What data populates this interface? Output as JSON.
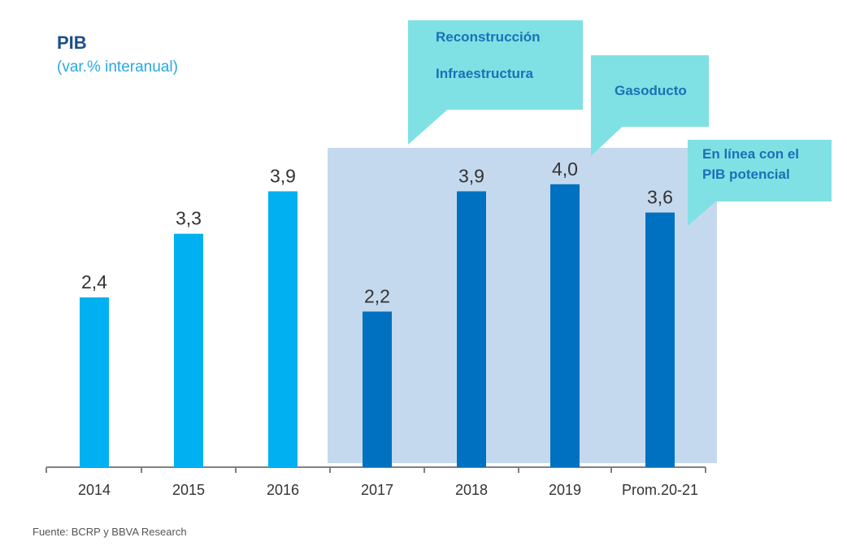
{
  "header": {
    "title": "PIB",
    "subtitle": "(var.% interanual)"
  },
  "footer": {
    "source": "Fuente: BCRP y BBVA Research"
  },
  "callouts": [
    {
      "lines": [
        "Reconstrucción",
        "Infraestructura"
      ]
    },
    {
      "lines": [
        "Gasoducto"
      ]
    },
    {
      "lines": [
        "En línea con el",
        "PIB potencial"
      ]
    }
  ],
  "colors": {
    "historical_bar": "#00b0f0",
    "forecast_bar": "#0070c0",
    "forecast_band": "#c5d9ee",
    "callout": "#7fe1e3"
  },
  "chart_data": {
    "type": "bar",
    "categories": [
      "2014",
      "2015",
      "2016",
      "2017",
      "2018",
      "2019",
      "Prom.20-21"
    ],
    "values": [
      2.4,
      3.3,
      3.9,
      2.2,
      3.9,
      4.0,
      3.6
    ],
    "value_labels": [
      "2,4",
      "3,3",
      "3,9",
      "2,2",
      "3,9",
      "4,0",
      "3,6"
    ],
    "highlighted_categories": [
      "2017",
      "2018",
      "2019",
      "Prom.20-21"
    ],
    "ylim": [
      0,
      4.56
    ],
    "grid": false,
    "legend": "none"
  }
}
